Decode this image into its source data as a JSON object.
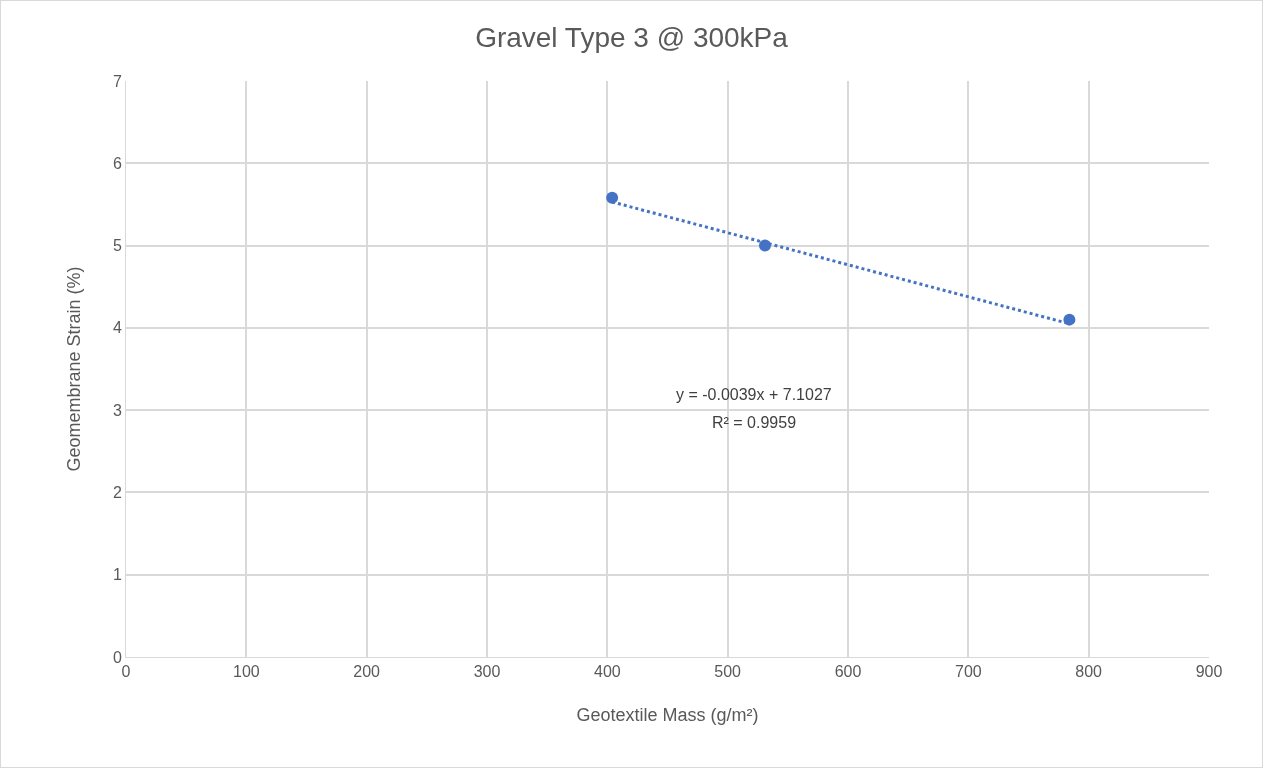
{
  "chart_data": {
    "type": "scatter",
    "title": "Gravel Type 3 @ 300kPa",
    "xlabel": "Geotextile Mass (g/m²)",
    "ylabel": "Geomembrane Strain (%)",
    "xlim": [
      0,
      900
    ],
    "xticks": [
      0,
      100,
      200,
      300,
      400,
      500,
      600,
      700,
      800,
      900
    ],
    "ylim": [
      0,
      7
    ],
    "yticks": [
      0,
      1,
      2,
      3,
      4,
      5,
      6,
      7
    ],
    "grid": true,
    "marker": "circle",
    "series": [
      {
        "x": [
          404,
          531,
          784
        ],
        "values": [
          5.58,
          5.0,
          4.1
        ],
        "color": "#4472c4"
      },
      {
        "type": "line",
        "x": [
          404,
          784
        ],
        "values": [
          5.53,
          4.05
        ],
        "color": "#4472c4",
        "line_style": "dotted",
        "marker": "none"
      }
    ],
    "annotations": [
      "y = -0.0039x + 7.1027",
      "R² = 0.9959"
    ]
  }
}
